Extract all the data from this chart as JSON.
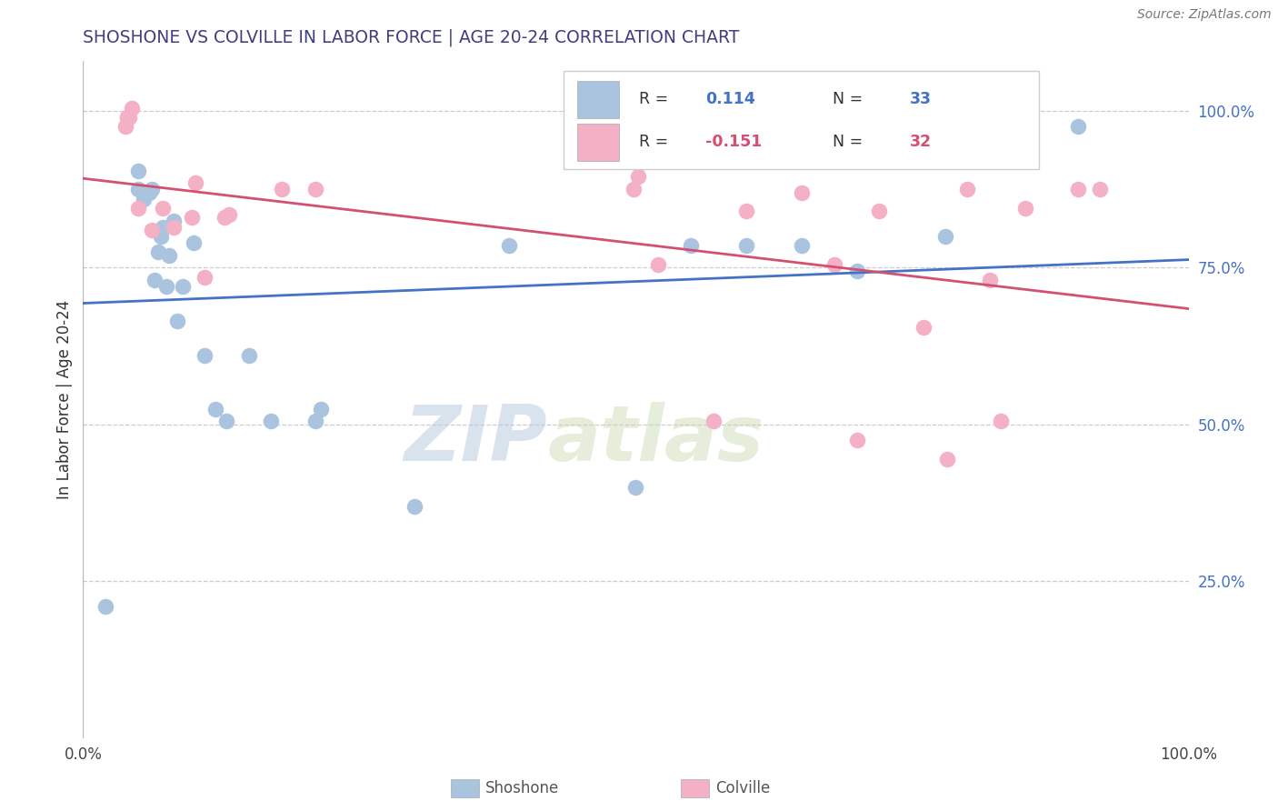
{
  "title": "SHOSHONE VS COLVILLE IN LABOR FORCE | AGE 20-24 CORRELATION CHART",
  "source": "Source: ZipAtlas.com",
  "ylabel": "In Labor Force | Age 20-24",
  "xlim": [
    0.0,
    1.0
  ],
  "ylim": [
    0.0,
    1.08
  ],
  "legend_shoshone_R": "0.114",
  "legend_shoshone_N": "33",
  "legend_colville_R": "-0.151",
  "legend_colville_N": "32",
  "shoshone_color": "#aac4e0",
  "colville_color": "#f4b0c5",
  "shoshone_line_color": "#4472c4",
  "colville_line_color": "#d45070",
  "shoshone_x": [
    0.02,
    0.04,
    0.05,
    0.05,
    0.055,
    0.06,
    0.062,
    0.065,
    0.068,
    0.07,
    0.072,
    0.075,
    0.078,
    0.082,
    0.085,
    0.09,
    0.1,
    0.11,
    0.12,
    0.13,
    0.15,
    0.17,
    0.21,
    0.215,
    0.3,
    0.385,
    0.5,
    0.55,
    0.6,
    0.65,
    0.7,
    0.78,
    0.9
  ],
  "shoshone_y": [
    0.21,
    0.99,
    0.875,
    0.905,
    0.86,
    0.87,
    0.875,
    0.73,
    0.775,
    0.8,
    0.815,
    0.72,
    0.77,
    0.825,
    0.665,
    0.72,
    0.79,
    0.61,
    0.525,
    0.505,
    0.61,
    0.505,
    0.505,
    0.525,
    0.37,
    0.785,
    0.4,
    0.785,
    0.785,
    0.785,
    0.745,
    0.8,
    0.975
  ],
  "colville_x": [
    0.038,
    0.04,
    0.042,
    0.044,
    0.05,
    0.062,
    0.072,
    0.082,
    0.098,
    0.102,
    0.11,
    0.128,
    0.132,
    0.18,
    0.21,
    0.498,
    0.502,
    0.52,
    0.57,
    0.6,
    0.65,
    0.68,
    0.7,
    0.72,
    0.76,
    0.782,
    0.8,
    0.82,
    0.83,
    0.852,
    0.9,
    0.92
  ],
  "colville_y": [
    0.975,
    0.99,
    0.99,
    1.005,
    0.845,
    0.81,
    0.845,
    0.815,
    0.83,
    0.885,
    0.735,
    0.83,
    0.835,
    0.875,
    0.875,
    0.875,
    0.895,
    0.755,
    0.505,
    0.84,
    0.87,
    0.755,
    0.475,
    0.84,
    0.655,
    0.445,
    0.875,
    0.73,
    0.505,
    0.845,
    0.875,
    0.875
  ],
  "watermark_zip": "ZIP",
  "watermark_atlas": "atlas",
  "background_color": "#ffffff",
  "grid_color": "#cccccc",
  "title_color": "#404080",
  "right_axis_color": "#4472c4",
  "ytick_positions": [
    0.25,
    0.5,
    0.75,
    1.0
  ],
  "ytick_labels_right": [
    "25.0%",
    "50.0%",
    "75.0%",
    "100.0%"
  ],
  "xtick_positions": [
    0.0,
    1.0
  ],
  "xtick_labels": [
    "0.0%",
    "100.0%"
  ],
  "bottom_labels": [
    "Shoshone",
    "Colville"
  ],
  "marker_size": 130,
  "marker_linewidth": 1.2
}
